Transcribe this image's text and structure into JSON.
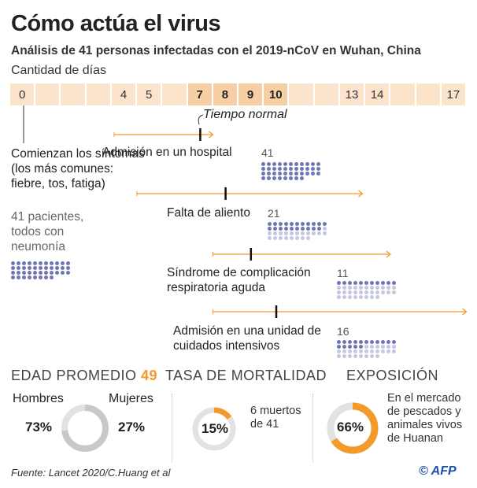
{
  "title": "Cómo actúa el virus",
  "subtitle": "Análisis de 41 personas infectadas con el 2019-nCoV en Wuhan, China",
  "days_label": "Cantidad de días",
  "days": [
    {
      "label": "0",
      "highlight": false
    },
    {
      "label": "",
      "highlight": false
    },
    {
      "label": "",
      "highlight": false
    },
    {
      "label": "",
      "highlight": false
    },
    {
      "label": "4",
      "highlight": false
    },
    {
      "label": "5",
      "highlight": false
    },
    {
      "label": "",
      "highlight": false
    },
    {
      "label": "7",
      "highlight": true
    },
    {
      "label": "8",
      "highlight": true
    },
    {
      "label": "9",
      "highlight": true
    },
    {
      "label": "10",
      "highlight": true
    },
    {
      "label": "",
      "highlight": false
    },
    {
      "label": "",
      "highlight": false
    },
    {
      "label": "13",
      "highlight": false
    },
    {
      "label": "14",
      "highlight": false
    },
    {
      "label": "",
      "highlight": false
    },
    {
      "label": "",
      "highlight": false
    },
    {
      "label": "17",
      "highlight": false
    }
  ],
  "normal_time_label": "Tiempo normal",
  "onset": {
    "title": "Comienzan los síntomas (los más comunes: fiebre, tos, fatiga)",
    "patients": "41 pacientes, todos con neumonía",
    "count": 41
  },
  "events": [
    {
      "label": "Admisión en un hospital",
      "count_label": "41",
      "count": 41,
      "range_days": [
        3.6,
        7,
        7.5
      ]
    },
    {
      "label": "Falta de aliento",
      "count_label": "21",
      "count": 21,
      "range_days": [
        4.5,
        8,
        13.4
      ]
    },
    {
      "label": "Síndrome de complicación respiratoria aguda",
      "count_label": "11",
      "count": 11,
      "range_days": [
        7.5,
        9,
        14.5
      ]
    },
    {
      "label": "Admisión en una unidad de cuidados intensivos",
      "count_label": "16",
      "count": 16,
      "range_days": [
        7.5,
        10,
        17.5
      ]
    }
  ],
  "total_patients": 41,
  "age": {
    "title": "EDAD PROMEDIO",
    "value": "49",
    "men_label": "Hombres",
    "women_label": "Mujeres",
    "men_pct": "73%",
    "women_pct": "27%",
    "men": 73,
    "women": 27
  },
  "mortality": {
    "title": "TASA DE MORTALIDAD",
    "pct": "15%",
    "value": 15,
    "note": "6 muertos de 41"
  },
  "exposure": {
    "title": "EXPOSICIÓN",
    "pct": "66%",
    "value": 66,
    "note": "En el mercado de pescados y animales vivos de Huanan"
  },
  "source": "Fuente: Lancet 2020/C.Huang et al",
  "credit": "© AFP",
  "colors": {
    "orange": "#f39a2b",
    "strip": "#fbe3cc",
    "strip_highlight": "#f7cfa5",
    "dot_on": "#6f76b3",
    "dot_off": "#c5c7e2",
    "ring_grey": "#c8c8c8",
    "ring_light": "#e2e2e2"
  }
}
